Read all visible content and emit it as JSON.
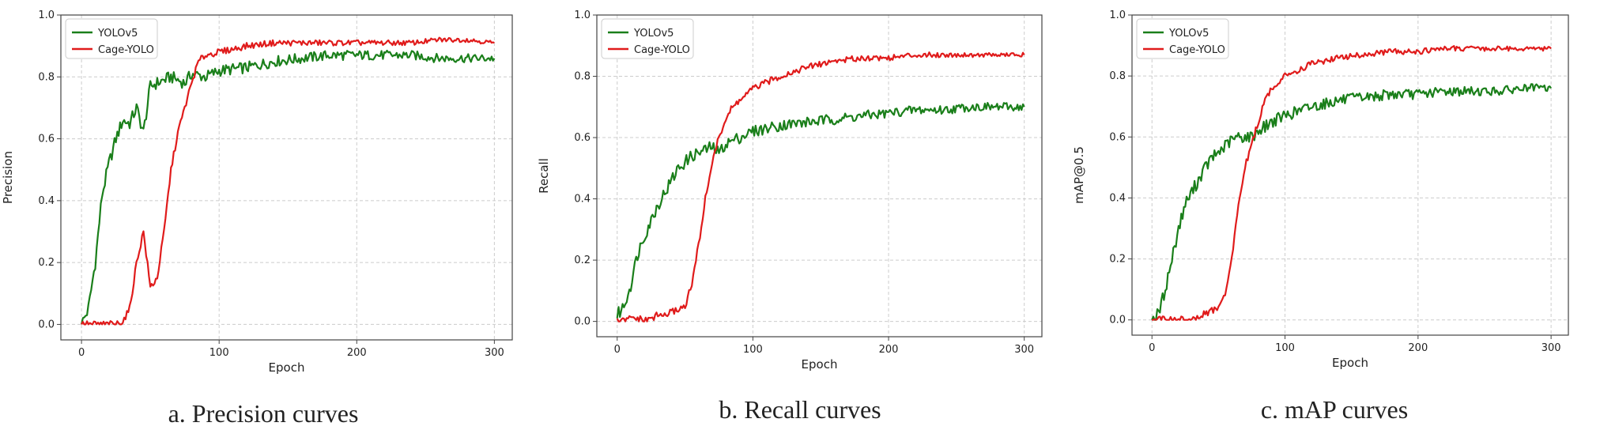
{
  "colors": {
    "yolov5": "#1a7f1a",
    "cage": "#e01b1b",
    "grid": "#cccccc",
    "axis": "#444444"
  },
  "chart_data": [
    {
      "type": "line",
      "caption": "a. Precision curves",
      "xlabel": "Epoch",
      "ylabel": "Precision",
      "xlim": [
        -15,
        313
      ],
      "ylim": [
        -0.05,
        1.0
      ],
      "xticks": [
        0,
        100,
        200,
        300
      ],
      "yticks": [
        0.0,
        0.2,
        0.4,
        0.6,
        0.8,
        1.0
      ],
      "ytick_labels": [
        "0.0",
        "0.2",
        "0.4",
        "0.6",
        "0.8",
        "1.0"
      ],
      "grid": true,
      "legend_position": "upper-left",
      "series": [
        {
          "name": "YOLOv5",
          "x": [
            0,
            5,
            10,
            15,
            20,
            25,
            30,
            35,
            40,
            45,
            50,
            55,
            60,
            65,
            70,
            75,
            80,
            90,
            100,
            120,
            140,
            160,
            180,
            200,
            220,
            240,
            260,
            280,
            300
          ],
          "values": [
            0.0,
            0.05,
            0.2,
            0.42,
            0.52,
            0.6,
            0.66,
            0.65,
            0.7,
            0.62,
            0.77,
            0.78,
            0.79,
            0.8,
            0.79,
            0.78,
            0.81,
            0.8,
            0.82,
            0.83,
            0.85,
            0.86,
            0.87,
            0.87,
            0.87,
            0.87,
            0.86,
            0.86,
            0.86
          ]
        },
        {
          "name": "Cage-YOLO",
          "x": [
            0,
            5,
            10,
            15,
            20,
            25,
            30,
            35,
            40,
            45,
            50,
            55,
            60,
            65,
            70,
            75,
            80,
            85,
            90,
            100,
            120,
            140,
            160,
            180,
            200,
            220,
            240,
            260,
            280,
            300
          ],
          "values": [
            0.0,
            0.0,
            0.0,
            0.0,
            0.0,
            0.0,
            0.01,
            0.05,
            0.2,
            0.3,
            0.12,
            0.15,
            0.3,
            0.5,
            0.62,
            0.7,
            0.78,
            0.85,
            0.87,
            0.88,
            0.9,
            0.91,
            0.91,
            0.91,
            0.91,
            0.91,
            0.91,
            0.92,
            0.92,
            0.91
          ]
        }
      ]
    },
    {
      "type": "line",
      "caption": "b. Recall curves",
      "xlabel": "Epoch",
      "ylabel": "Recall",
      "xlim": [
        -15,
        313
      ],
      "ylim": [
        -0.05,
        1.0
      ],
      "xticks": [
        0,
        100,
        200,
        300
      ],
      "yticks": [
        0.0,
        0.2,
        0.4,
        0.6,
        0.8,
        1.0
      ],
      "ytick_labels": [
        "0.0",
        "0.2",
        "0.4",
        "0.6",
        "0.8",
        "1.0"
      ],
      "grid": true,
      "legend_position": "upper-left",
      "series": [
        {
          "name": "YOLOv5",
          "x": [
            0,
            5,
            10,
            15,
            20,
            25,
            30,
            35,
            40,
            45,
            50,
            55,
            60,
            65,
            70,
            75,
            80,
            90,
            100,
            120,
            140,
            160,
            180,
            200,
            220,
            240,
            260,
            280,
            300
          ],
          "values": [
            0.02,
            0.05,
            0.12,
            0.22,
            0.28,
            0.33,
            0.38,
            0.42,
            0.46,
            0.5,
            0.52,
            0.54,
            0.55,
            0.56,
            0.57,
            0.55,
            0.58,
            0.6,
            0.62,
            0.64,
            0.65,
            0.66,
            0.67,
            0.68,
            0.69,
            0.69,
            0.7,
            0.7,
            0.7
          ]
        },
        {
          "name": "Cage-YOLO",
          "x": [
            0,
            5,
            10,
            15,
            20,
            25,
            30,
            35,
            40,
            45,
            50,
            55,
            60,
            65,
            70,
            75,
            80,
            85,
            90,
            100,
            120,
            140,
            160,
            180,
            200,
            220,
            240,
            260,
            280,
            300
          ],
          "values": [
            0.0,
            0.0,
            0.01,
            0.01,
            0.0,
            0.01,
            0.02,
            0.02,
            0.03,
            0.04,
            0.05,
            0.12,
            0.25,
            0.4,
            0.52,
            0.6,
            0.66,
            0.7,
            0.72,
            0.76,
            0.8,
            0.83,
            0.85,
            0.86,
            0.86,
            0.87,
            0.87,
            0.87,
            0.87,
            0.87
          ]
        }
      ]
    },
    {
      "type": "line",
      "caption": "c. mAP curves",
      "xlabel": "Epoch",
      "ylabel": "mAP@0.5",
      "xlim": [
        -15,
        313
      ],
      "ylim": [
        -0.05,
        1.0
      ],
      "xticks": [
        0,
        100,
        200,
        300
      ],
      "yticks": [
        0.0,
        0.2,
        0.4,
        0.6,
        0.8,
        1.0
      ],
      "ytick_labels": [
        "0.0",
        "0.2",
        "0.4",
        "0.6",
        "0.8",
        "1.0"
      ],
      "grid": true,
      "legend_position": "upper-left",
      "series": [
        {
          "name": "YOLOv5",
          "x": [
            0,
            5,
            10,
            15,
            20,
            25,
            30,
            35,
            40,
            45,
            50,
            55,
            60,
            65,
            70,
            75,
            80,
            90,
            100,
            120,
            140,
            160,
            180,
            200,
            220,
            240,
            260,
            280,
            300
          ],
          "values": [
            0.0,
            0.02,
            0.1,
            0.2,
            0.3,
            0.38,
            0.42,
            0.46,
            0.5,
            0.53,
            0.55,
            0.57,
            0.59,
            0.6,
            0.6,
            0.6,
            0.62,
            0.65,
            0.67,
            0.7,
            0.72,
            0.73,
            0.74,
            0.74,
            0.75,
            0.75,
            0.75,
            0.76,
            0.76
          ]
        },
        {
          "name": "Cage-YOLO",
          "x": [
            0,
            5,
            10,
            15,
            20,
            25,
            30,
            35,
            40,
            45,
            50,
            55,
            60,
            65,
            70,
            75,
            80,
            85,
            90,
            100,
            120,
            140,
            160,
            180,
            200,
            220,
            240,
            260,
            280,
            300
          ],
          "values": [
            0.0,
            0.0,
            0.0,
            0.0,
            0.0,
            0.0,
            0.0,
            0.01,
            0.02,
            0.03,
            0.04,
            0.08,
            0.2,
            0.38,
            0.5,
            0.58,
            0.65,
            0.72,
            0.76,
            0.8,
            0.84,
            0.86,
            0.87,
            0.88,
            0.88,
            0.89,
            0.89,
            0.89,
            0.89,
            0.89
          ]
        }
      ]
    }
  ]
}
